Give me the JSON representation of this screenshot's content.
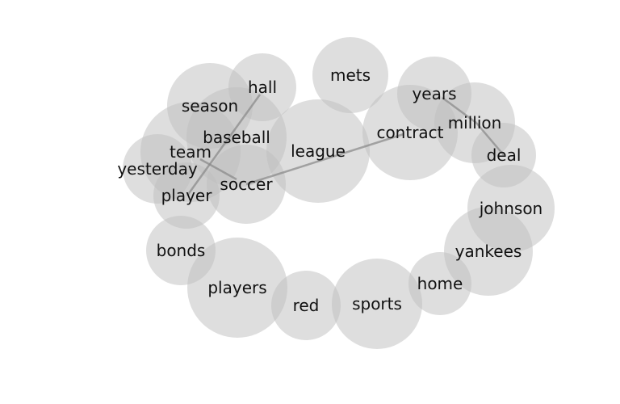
{
  "words": [
    {
      "id": "season",
      "label": "season"
    },
    {
      "id": "hall",
      "label": "hall"
    },
    {
      "id": "mets",
      "label": "mets"
    },
    {
      "id": "years",
      "label": "years"
    },
    {
      "id": "million",
      "label": "million"
    },
    {
      "id": "deal",
      "label": "deal"
    },
    {
      "id": "contract",
      "label": "contract"
    },
    {
      "id": "league",
      "label": "league"
    },
    {
      "id": "baseball",
      "label": "baseball"
    },
    {
      "id": "team",
      "label": "team"
    },
    {
      "id": "yesterday",
      "label": "yesterday"
    },
    {
      "id": "player",
      "label": "player"
    },
    {
      "id": "soccer",
      "label": "soccer"
    },
    {
      "id": "johnson",
      "label": "johnson"
    },
    {
      "id": "yankees",
      "label": "yankees"
    },
    {
      "id": "bonds",
      "label": "bonds"
    },
    {
      "id": "players",
      "label": "players"
    },
    {
      "id": "red",
      "label": "red"
    },
    {
      "id": "sports",
      "label": "sports"
    },
    {
      "id": "home",
      "label": "home"
    }
  ],
  "links": [
    [
      "hall",
      "player"
    ],
    [
      "baseball",
      "soccer"
    ],
    [
      "soccer",
      "contract"
    ],
    [
      "years",
      "million"
    ],
    [
      "million",
      "deal"
    ]
  ],
  "colors": {
    "bubble": "#bdbdbd",
    "edge": "#888888",
    "text": "#111111"
  }
}
